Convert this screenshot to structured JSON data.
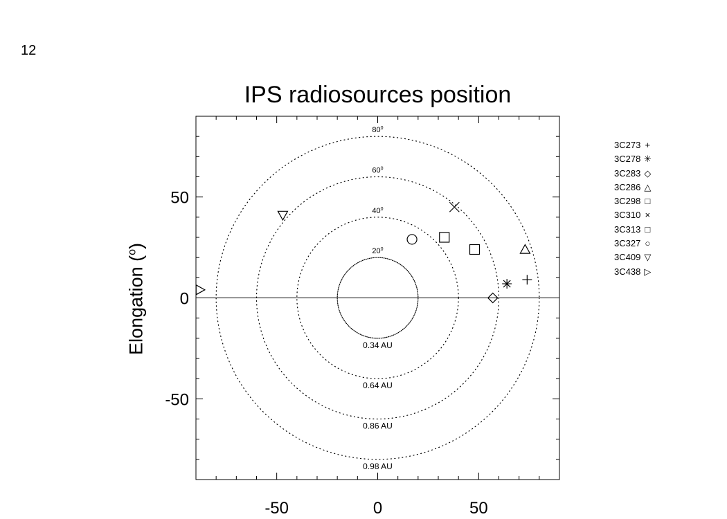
{
  "page_number": "12",
  "chart_data": {
    "type": "scatter",
    "title": "IPS radiosources position",
    "xlabel": "",
    "ylabel": "Elongation (",
    "ylabel_superscript": "o",
    "ylabel_suffix": ")",
    "xlim": [
      -90,
      90
    ],
    "ylim": [
      -90,
      90
    ],
    "x_ticks": [
      -50,
      0,
      50
    ],
    "y_ticks": [
      -50,
      0,
      50
    ],
    "grid": false,
    "legend_position": "right",
    "circles": [
      {
        "radius": 20,
        "style": "dotted-dense",
        "angle_label": "20",
        "distance_label": "0.34 AU"
      },
      {
        "radius": 40,
        "style": "dotted",
        "angle_label": "40",
        "distance_label": "0.64 AU"
      },
      {
        "radius": 60,
        "style": "dotted",
        "angle_label": "60",
        "distance_label": "0.86 AU"
      },
      {
        "radius": 80,
        "style": "dotted",
        "angle_label": "80",
        "distance_label": "0.98 AU"
      }
    ],
    "angle_label_superscript": "0",
    "series": [
      {
        "name": "3C273",
        "marker": "plus",
        "x": 74,
        "y": 9
      },
      {
        "name": "3C278",
        "marker": "asterisk",
        "x": 64,
        "y": 7
      },
      {
        "name": "3C283",
        "marker": "diamond",
        "x": 57,
        "y": 0
      },
      {
        "name": "3C286",
        "marker": "triangle-up",
        "x": 73,
        "y": 24
      },
      {
        "name": "3C298",
        "marker": "square",
        "x": 33,
        "y": 30
      },
      {
        "name": "3C310",
        "marker": "x",
        "x": 38,
        "y": 45
      },
      {
        "name": "3C313",
        "marker": "square",
        "x": 48,
        "y": 24
      },
      {
        "name": "3C327",
        "marker": "circle",
        "x": 17,
        "y": 29
      },
      {
        "name": "3C409",
        "marker": "triangle-down",
        "x": -47,
        "y": 41
      },
      {
        "name": "3C438",
        "marker": "triangle-right",
        "x": -88,
        "y": 4
      }
    ],
    "legend_symbols": {
      "plus": "+",
      "asterisk": "✳",
      "diamond": "◇",
      "triangle-up": "△",
      "square": "□",
      "x": "×",
      "circle": "○",
      "triangle-down": "▽",
      "triangle-right": "▷"
    }
  }
}
